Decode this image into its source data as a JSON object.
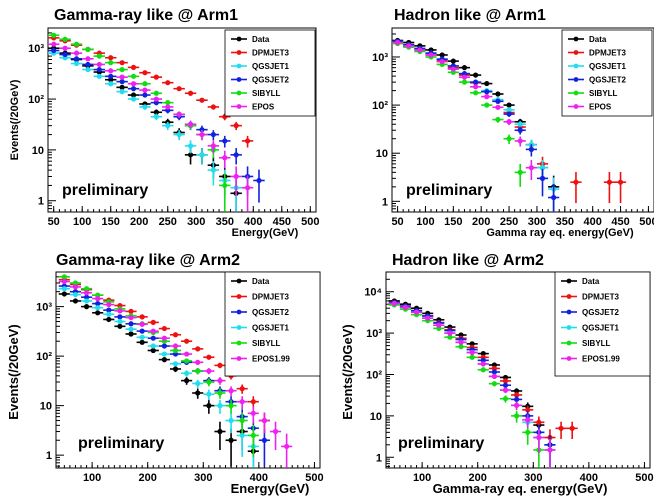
{
  "colors": {
    "Data": "#000000",
    "DPMJET3": "#ee1111",
    "QGSJET1": "#22ddee",
    "QGSJET2": "#1122dd",
    "SIBYLL": "#11dd11",
    "EPOS": "#ee22ee",
    "EPOS1.99": "#ee22ee"
  },
  "chart_data": [
    {
      "type": "scatter",
      "title": "Gamma-ray  like  @  Arm1",
      "xlabel": "Energy(GeV)",
      "ylabel": "Events(/20GeV)",
      "xlim": [
        40,
        510
      ],
      "ylim": [
        0.6,
        2500
      ],
      "log_y": true,
      "xticks": [
        50,
        100,
        150,
        200,
        250,
        300,
        350,
        400,
        450,
        500
      ],
      "yticks": [
        {
          "v": 1,
          "label": "1"
        },
        {
          "v": 10,
          "label": "10"
        },
        {
          "v": 100,
          "label": "10²"
        },
        {
          "v": 1000,
          "label": "10³"
        }
      ],
      "legend": {
        "position": "top-right",
        "entries": [
          "Data",
          "DPMJET3",
          "QGSJET1",
          "QGSJET2",
          "SIBYLL",
          "EPOS"
        ]
      },
      "annotation": "preliminary",
      "series": [
        {
          "name": "Data",
          "x": [
            50,
            70,
            90,
            110,
            130,
            150,
            170,
            190,
            210,
            230,
            250,
            270,
            290,
            310,
            330,
            350,
            370
          ],
          "y": [
            1000,
            800,
            600,
            450,
            340,
            240,
            170,
            120,
            80,
            55,
            35,
            22,
            8,
            8,
            5,
            3,
            1.4
          ]
        },
        {
          "name": "DPMJET3",
          "x": [
            50,
            70,
            90,
            110,
            130,
            150,
            170,
            190,
            210,
            230,
            250,
            270,
            290,
            310,
            330,
            350,
            370,
            390
          ],
          "y": [
            1600,
            1400,
            1150,
            950,
            800,
            650,
            520,
            420,
            330,
            270,
            210,
            160,
            130,
            95,
            70,
            45,
            30,
            15
          ]
        },
        {
          "name": "QGSJET1",
          "x": [
            50,
            70,
            90,
            110,
            130,
            150,
            170,
            190,
            210,
            230,
            250,
            270,
            290,
            310,
            330,
            350,
            370
          ],
          "y": [
            800,
            650,
            500,
            380,
            280,
            200,
            140,
            100,
            70,
            45,
            30,
            20,
            12,
            8,
            4,
            2.5,
            1.8
          ]
        },
        {
          "name": "QGSJET2",
          "x": [
            50,
            70,
            90,
            110,
            130,
            150,
            170,
            190,
            210,
            230,
            250,
            270,
            290,
            310,
            330,
            350,
            370,
            390,
            410
          ],
          "y": [
            900,
            750,
            620,
            480,
            380,
            280,
            220,
            160,
            120,
            85,
            60,
            45,
            30,
            25,
            20,
            15,
            8,
            3,
            2.5
          ]
        },
        {
          "name": "SIBYLL",
          "x": [
            50,
            70,
            90,
            110,
            130,
            150,
            170,
            190,
            210,
            230,
            250,
            270,
            290,
            310,
            330,
            350
          ],
          "y": [
            1800,
            1500,
            1200,
            950,
            700,
            520,
            380,
            280,
            200,
            130,
            85,
            50,
            30,
            20,
            10,
            2
          ]
        },
        {
          "name": "EPOS",
          "x": [
            50,
            70,
            90,
            110,
            130,
            150,
            170,
            190,
            210,
            230,
            250,
            270,
            290,
            310,
            330,
            350,
            370,
            390
          ],
          "y": [
            1200,
            1000,
            800,
            620,
            480,
            360,
            270,
            200,
            150,
            100,
            70,
            50,
            32,
            20,
            12,
            7,
            3,
            1.8
          ]
        }
      ]
    },
    {
      "type": "scatter",
      "title": "Hadron  like  @  Arm1",
      "xlabel": "Gamma ray eq. energy(GeV)",
      "ylabel": "",
      "xlim": [
        40,
        510
      ],
      "ylim": [
        0.6,
        4000
      ],
      "log_y": true,
      "xticks": [
        50,
        100,
        150,
        200,
        250,
        300,
        350,
        400,
        450,
        500
      ],
      "yticks": [
        {
          "v": 1,
          "label": "1"
        },
        {
          "v": 10,
          "label": "10"
        },
        {
          "v": 100,
          "label": "10²"
        },
        {
          "v": 1000,
          "label": "10³"
        }
      ],
      "legend": {
        "position": "top-right",
        "entries": [
          "Data",
          "DPMJET3",
          "QGSJET1",
          "QGSJET2",
          "SIBYLL",
          "EPOS"
        ]
      },
      "annotation": "preliminary",
      "series": [
        {
          "name": "Data",
          "x": [
            50,
            70,
            90,
            110,
            130,
            150,
            170,
            190,
            210,
            230,
            250,
            270,
            290,
            310,
            330
          ],
          "y": [
            2200,
            2000,
            1700,
            1400,
            1100,
            820,
            600,
            420,
            280,
            170,
            100,
            45,
            15,
            5,
            2
          ]
        },
        {
          "name": "DPMJET3",
          "x": [
            50,
            70,
            90,
            110,
            130,
            150,
            170,
            190,
            210,
            230,
            250,
            270,
            290,
            310,
            370,
            430,
            450
          ],
          "y": [
            2000,
            1700,
            1400,
            1100,
            850,
            600,
            420,
            290,
            190,
            120,
            70,
            35,
            15,
            6,
            2.5,
            2.5,
            2.5
          ]
        },
        {
          "name": "QGSJET1",
          "x": [
            50,
            70,
            90,
            110,
            130,
            150,
            170,
            190,
            210,
            230,
            250,
            270,
            290,
            310,
            330
          ],
          "y": [
            2100,
            1800,
            1500,
            1200,
            900,
            650,
            450,
            300,
            200,
            130,
            80,
            40,
            15,
            5,
            1.8
          ]
        },
        {
          "name": "QGSJET2",
          "x": [
            50,
            70,
            90,
            110,
            130,
            150,
            170,
            190,
            210,
            230,
            250,
            270,
            290,
            310,
            330
          ],
          "y": [
            2100,
            1800,
            1500,
            1200,
            900,
            650,
            450,
            300,
            190,
            120,
            65,
            30,
            12,
            3,
            1.2
          ]
        },
        {
          "name": "SIBYLL",
          "x": [
            50,
            70,
            90,
            110,
            130,
            150,
            170,
            190,
            210,
            230,
            250,
            270
          ],
          "y": [
            1900,
            1600,
            1300,
            1000,
            700,
            480,
            300,
            180,
            100,
            50,
            20,
            4
          ]
        },
        {
          "name": "EPOS",
          "x": [
            50,
            70,
            90,
            110,
            130,
            150,
            170,
            190,
            210,
            230,
            250,
            270,
            290
          ],
          "y": [
            2000,
            1700,
            1400,
            1100,
            800,
            560,
            380,
            240,
            150,
            90,
            45,
            18,
            5
          ]
        }
      ]
    },
    {
      "type": "scatter",
      "title": "Gamma-ray  like  @  Arm2",
      "xlabel": "Energy(GeV)",
      "ylabel": "Events(/20GeV)",
      "xlim": [
        35,
        510
      ],
      "ylim": [
        0.55,
        5000
      ],
      "log_y": true,
      "xticks": [
        100,
        200,
        300,
        400,
        500
      ],
      "yticks": [
        {
          "v": 1,
          "label": "1"
        },
        {
          "v": 10,
          "label": "10"
        },
        {
          "v": 100,
          "label": "10²"
        },
        {
          "v": 1000,
          "label": "10³"
        }
      ],
      "legend": {
        "position": "top-right",
        "entries": [
          "Data",
          "DPMJET3",
          "QGSJET2",
          "QGSJET1",
          "SIBYLL",
          "EPOS1.99"
        ]
      },
      "annotation": "preliminary",
      "series": [
        {
          "name": "Data",
          "x": [
            50,
            70,
            90,
            110,
            130,
            150,
            170,
            190,
            210,
            230,
            250,
            270,
            290,
            310,
            330,
            350,
            370,
            390
          ],
          "y": [
            1800,
            1300,
            1000,
            750,
            550,
            400,
            280,
            190,
            130,
            85,
            55,
            32,
            18,
            10,
            3,
            2,
            3,
            1.2
          ]
        },
        {
          "name": "DPMJET3",
          "x": [
            50,
            70,
            90,
            110,
            130,
            150,
            170,
            190,
            210,
            230,
            250,
            270,
            290,
            310,
            330,
            350,
            370,
            390,
            410
          ],
          "y": [
            3500,
            2800,
            2200,
            1700,
            1350,
            1050,
            800,
            620,
            480,
            360,
            270,
            200,
            140,
            95,
            65,
            40,
            22,
            12,
            5
          ]
        },
        {
          "name": "QGSJET2",
          "x": [
            50,
            70,
            90,
            110,
            130,
            150,
            170,
            190,
            210,
            230,
            250,
            270,
            290,
            310,
            330,
            350,
            370,
            390,
            410
          ],
          "y": [
            2600,
            2000,
            1550,
            1150,
            850,
            620,
            450,
            320,
            230,
            160,
            110,
            75,
            50,
            32,
            20,
            12,
            6,
            3.5,
            2
          ]
        },
        {
          "name": "QGSJET1",
          "x": [
            50,
            70,
            90,
            110,
            130,
            150,
            170,
            190,
            210,
            230,
            250,
            270,
            290,
            310,
            330,
            350,
            370,
            390
          ],
          "y": [
            2300,
            1750,
            1300,
            950,
            700,
            500,
            350,
            240,
            160,
            110,
            70,
            45,
            28,
            17,
            10,
            5,
            2.5,
            1.5
          ]
        },
        {
          "name": "SIBYLL",
          "x": [
            50,
            70,
            90,
            110,
            130,
            150,
            170,
            190,
            210,
            230,
            250,
            270,
            290,
            310,
            330,
            350,
            370,
            390
          ],
          "y": [
            4000,
            3000,
            2300,
            1700,
            1250,
            900,
            650,
            450,
            300,
            200,
            130,
            80,
            50,
            30,
            18,
            10,
            5,
            2.5
          ]
        },
        {
          "name": "EPOS1.99",
          "x": [
            50,
            70,
            90,
            110,
            130,
            150,
            170,
            190,
            210,
            230,
            250,
            270,
            290,
            310,
            330,
            350,
            370,
            390,
            410,
            430,
            450
          ],
          "y": [
            3200,
            2500,
            1900,
            1450,
            1100,
            820,
            600,
            440,
            320,
            230,
            160,
            110,
            75,
            50,
            32,
            20,
            12,
            7,
            5,
            3,
            1.5
          ]
        }
      ]
    },
    {
      "type": "scatter",
      "title": "Hadron  like  @  Arm2",
      "xlabel": "Gamma-ray eq. energy(GeV)",
      "ylabel": "Events(/20GeV)",
      "xlim": [
        35,
        510
      ],
      "ylim": [
        0.55,
        30000
      ],
      "log_y": true,
      "xticks": [
        100,
        200,
        300,
        400,
        500
      ],
      "yticks": [
        {
          "v": 1,
          "label": "1"
        },
        {
          "v": 10,
          "label": "10"
        },
        {
          "v": 100,
          "label": "10²"
        },
        {
          "v": 1000,
          "label": "10³"
        },
        {
          "v": 10000,
          "label": "10⁴"
        }
      ],
      "legend": {
        "position": "top-right",
        "entries": [
          "Data",
          "DPMJET3",
          "QGSJET2",
          "QGSJET1",
          "SIBYLL",
          "EPOS1.99"
        ]
      },
      "annotation": "preliminary",
      "series": [
        {
          "name": "Data",
          "x": [
            50,
            70,
            90,
            110,
            130,
            150,
            170,
            190,
            210,
            230,
            250,
            270,
            290,
            310,
            330
          ],
          "y": [
            6000,
            5000,
            4000,
            3000,
            2100,
            1400,
            900,
            550,
            320,
            170,
            85,
            40,
            17,
            6,
            2
          ]
        },
        {
          "name": "DPMJET3",
          "x": [
            50,
            70,
            90,
            110,
            130,
            150,
            170,
            190,
            210,
            230,
            250,
            270,
            290,
            310,
            330,
            350,
            370
          ],
          "y": [
            5500,
            4500,
            3500,
            2600,
            1800,
            1200,
            750,
            450,
            260,
            140,
            70,
            32,
            14,
            7,
            3,
            5,
            5
          ]
        },
        {
          "name": "QGSJET2",
          "x": [
            50,
            70,
            90,
            110,
            130,
            150,
            170,
            190,
            210,
            230,
            250,
            270,
            290,
            310,
            330
          ],
          "y": [
            5500,
            4500,
            3500,
            2600,
            1750,
            1150,
            700,
            400,
            220,
            115,
            55,
            25,
            10,
            4,
            2
          ]
        },
        {
          "name": "QGSJET1",
          "x": [
            50,
            70,
            90,
            110,
            130,
            150,
            170,
            190,
            210,
            230,
            250,
            270,
            290,
            310,
            330
          ],
          "y": [
            5200,
            4200,
            3200,
            2300,
            1550,
            1000,
            600,
            340,
            180,
            90,
            42,
            18,
            7,
            3,
            1.5
          ]
        },
        {
          "name": "SIBYLL",
          "x": [
            50,
            70,
            90,
            110,
            130,
            150,
            170,
            190,
            210,
            230,
            250,
            270,
            290,
            310
          ],
          "y": [
            4800,
            3800,
            2800,
            2000,
            1300,
            800,
            470,
            260,
            130,
            60,
            26,
            10,
            4,
            1.5
          ]
        },
        {
          "name": "EPOS1.99",
          "x": [
            50,
            70,
            90,
            110,
            130,
            150,
            170,
            190,
            210,
            230,
            250,
            270,
            290,
            310,
            330
          ],
          "y": [
            5200,
            4200,
            3200,
            2300,
            1550,
            1000,
            600,
            340,
            180,
            90,
            42,
            18,
            8,
            3,
            1.5
          ]
        }
      ]
    }
  ]
}
